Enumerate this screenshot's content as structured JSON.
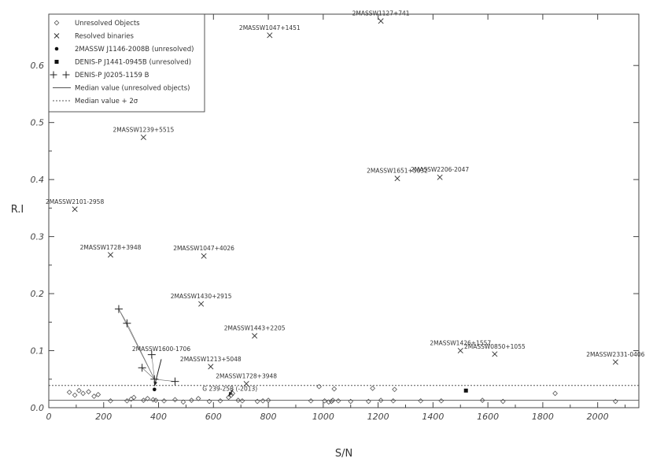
{
  "chart_data": {
    "type": "scatter",
    "title": "",
    "xlabel": "S/N",
    "ylabel": "R.I",
    "xlim": [
      0,
      2150
    ],
    "ylim": [
      0,
      0.69
    ],
    "xticks": [
      0,
      200,
      400,
      600,
      800,
      1000,
      1200,
      1400,
      1600,
      1800,
      2000
    ],
    "yticks": [
      0.0,
      0.1,
      0.2,
      0.3,
      0.4,
      0.5,
      0.6
    ],
    "grid": false,
    "legend_position": "top-left",
    "legend": [
      {
        "label": "Unresolved Objects",
        "marker": "diamond"
      },
      {
        "label": "Resolved binaries",
        "marker": "cross"
      },
      {
        "label": "2MASSW J1146-2008B (unresolved)",
        "marker": "dot"
      },
      {
        "label": "DENIS-P J1441-0945B (unresolved)",
        "marker": "square"
      },
      {
        "label": "DENIS-P J0205-1159 B",
        "marker": "plus"
      },
      {
        "label": "Median value (unresolved objects)",
        "marker": "solid-line"
      },
      {
        "label": "Median value + 2σ",
        "marker": "dashed-line"
      }
    ],
    "series": [
      {
        "name": "Unresolved Objects",
        "x": [
          75,
          95,
          110,
          125,
          145,
          165,
          180,
          225,
          285,
          300,
          310,
          345,
          360,
          380,
          390,
          420,
          460,
          490,
          520,
          545,
          585,
          625,
          655,
          665,
          670,
          690,
          705,
          760,
          780,
          800,
          955,
          985,
          1005,
          1020,
          1030,
          1035,
          1040,
          1055,
          1100,
          1165,
          1180,
          1210,
          1255,
          1260,
          1355,
          1430,
          1580,
          1655,
          1845,
          2065
        ],
        "y": [
          0.027,
          0.022,
          0.03,
          0.025,
          0.028,
          0.02,
          0.023,
          0.012,
          0.012,
          0.015,
          0.018,
          0.013,
          0.016,
          0.014,
          0.013,
          0.012,
          0.014,
          0.01,
          0.013,
          0.016,
          0.011,
          0.012,
          0.018,
          0.022,
          0.025,
          0.013,
          0.012,
          0.011,
          0.012,
          0.013,
          0.012,
          0.037,
          0.012,
          0.01,
          0.011,
          0.013,
          0.033,
          0.012,
          0.011,
          0.011,
          0.034,
          0.013,
          0.012,
          0.032,
          0.012,
          0.012,
          0.013,
          0.011,
          0.025,
          0.011
        ]
      },
      {
        "name": "Resolved binaries",
        "x": [
          95,
          225,
          345,
          555,
          565,
          590,
          720,
          750,
          805,
          1210,
          1270,
          1425,
          1500,
          1625,
          2065
        ],
        "y": [
          0.348,
          0.268,
          0.474,
          0.182,
          0.266,
          0.072,
          0.042,
          0.126,
          0.653,
          0.678,
          0.402,
          0.404,
          0.1,
          0.094,
          0.08
        ]
      },
      {
        "name": "2MASSW J1146-2008B (unresolved)",
        "x": [
          385
        ],
        "y": [
          0.032
        ]
      },
      {
        "name": "DENIS-P J1441-0945B (unresolved)",
        "x": [
          1520
        ],
        "y": [
          0.03
        ]
      },
      {
        "name": "DENIS-P J0205-1159 B",
        "x": [
          255,
          285,
          340,
          375,
          385,
          460
        ],
        "y": [
          0.173,
          0.148,
          0.07,
          0.093,
          0.05,
          0.046
        ]
      }
    ],
    "binary_connections": [
      [
        0,
        4
      ],
      [
        1,
        4
      ],
      [
        2,
        4
      ],
      [
        3,
        4
      ],
      [
        4,
        5
      ],
      [
        0,
        1
      ]
    ],
    "reference_lines": [
      {
        "name": "Median value (unresolved objects)",
        "y": 0.013,
        "style": "solid"
      },
      {
        "name": "Median value + 2σ",
        "y": 0.039,
        "style": "dashed"
      }
    ],
    "annotations": [
      {
        "text": "2MASSW2101-2958",
        "x": 95,
        "y": 0.348
      },
      {
        "text": "2MASSW1728+3948",
        "x": 225,
        "y": 0.268
      },
      {
        "text": "2MASSW1239+5515",
        "x": 345,
        "y": 0.474
      },
      {
        "text": "2MASSW1430+2915",
        "x": 555,
        "y": 0.182
      },
      {
        "text": "2MASSW1047+4026",
        "x": 565,
        "y": 0.266
      },
      {
        "text": "2MASSW1600-1706",
        "x": 410,
        "y": 0.09
      },
      {
        "text": "2MASSW1213+5048",
        "x": 590,
        "y": 0.072
      },
      {
        "text": "2MASSW1728+3948",
        "x": 720,
        "y": 0.042
      },
      {
        "text": "2MASSW1443+2205",
        "x": 750,
        "y": 0.126
      },
      {
        "text": "2MASSW1047+1451",
        "x": 805,
        "y": 0.653
      },
      {
        "text": "2MASSW1127+741",
        "x": 1210,
        "y": 0.678
      },
      {
        "text": "2MASSW1651+5032",
        "x": 1270,
        "y": 0.402
      },
      {
        "text": "2MASSW2206-2047",
        "x": 1425,
        "y": 0.404
      },
      {
        "text": "2MASSW1426+1557",
        "x": 1500,
        "y": 0.1
      },
      {
        "text": "2MASSW0850+1055",
        "x": 1625,
        "y": 0.094
      },
      {
        "text": "2MASSW2331-0406",
        "x": 2065,
        "y": 0.08
      },
      {
        "text": "G 239-25B (-2013)",
        "x": 660,
        "y": 0.02
      }
    ]
  }
}
